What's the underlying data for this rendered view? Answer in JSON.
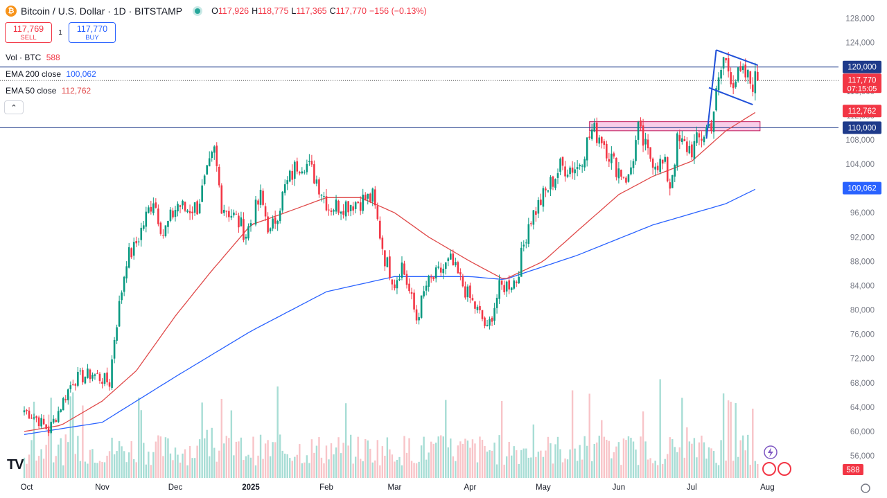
{
  "header": {
    "logo_glyph": "₿",
    "symbol_title": "Bitcoin / U.S. Dollar · 1D · BITSTAMP",
    "open_label": "O",
    "open": "117,926",
    "high_label": "H",
    "high": "118,775",
    "low_label": "L",
    "low": "117,365",
    "close_label": "C",
    "close": "117,770",
    "change": "−156 (−0.13%)"
  },
  "trade": {
    "sell_price": "117,769",
    "sell_label": "SELL",
    "spread": "1",
    "buy_price": "117,770",
    "buy_label": "BUY"
  },
  "indicators": {
    "vol_name": "Vol · BTC",
    "vol_value": "588",
    "ema200_name": "EMA 200 close",
    "ema200_value": "100,062",
    "ema50_name": "EMA 50 close",
    "ema50_value": "112,762",
    "collapse_glyph": "⌃"
  },
  "logo_text": "TV",
  "colors": {
    "up": "#089981",
    "down": "#f23645",
    "ema200": "#2962ff",
    "ema50": "#e04a4a",
    "hline": "#1e3a8a",
    "zone_fill": "#f7c6e4",
    "zone_stroke": "#c2185b",
    "trendline": "#2050d8",
    "vol_up": "#a7ddd5",
    "vol_down": "#f8c4c8"
  },
  "chart_data": {
    "type": "candlestick",
    "title": "Bitcoin / U.S. Dollar · 1D · BITSTAMP",
    "ylim": [
      53000,
      130000
    ],
    "y_ticks": [
      "56,000",
      "60,000",
      "64,000",
      "68,000",
      "72,000",
      "76,000",
      "80,000",
      "84,000",
      "88,000",
      "92,000",
      "96,000",
      "100,000",
      "104,000",
      "108,000",
      "112,000",
      "116,000",
      "120,000",
      "124,000",
      "128,000"
    ],
    "x_ticks": [
      "Oct",
      "Nov",
      "Dec",
      "2025",
      "Feb",
      "Mar",
      "Apr",
      "May",
      "Jun",
      "Jul",
      "Aug"
    ],
    "close_path": [
      [
        "2024-09-30",
        63500
      ],
      [
        "2024-10-05",
        62200
      ],
      [
        "2024-10-10",
        60200
      ],
      [
        "2024-10-13",
        62500
      ],
      [
        "2024-10-20",
        68500
      ],
      [
        "2024-10-28",
        69500
      ],
      [
        "2024-11-04",
        68000
      ],
      [
        "2024-11-06",
        75500
      ],
      [
        "2024-11-11",
        88500
      ],
      [
        "2024-11-14",
        90000
      ],
      [
        "2024-11-22",
        98500
      ],
      [
        "2024-11-26",
        92500
      ],
      [
        "2024-12-02",
        97500
      ],
      [
        "2024-12-05",
        96500
      ],
      [
        "2024-12-10",
        97000
      ],
      [
        "2024-12-17",
        106000
      ],
      [
        "2024-12-20",
        97500
      ],
      [
        "2024-12-26",
        95000
      ],
      [
        "2024-12-30",
        92500
      ],
      [
        "2025-01-05",
        98500
      ],
      [
        "2025-01-09",
        92500
      ],
      [
        "2025-01-15",
        100000
      ],
      [
        "2025-01-20",
        104000
      ],
      [
        "2025-01-23",
        104500
      ],
      [
        "2025-01-28",
        101500
      ],
      [
        "2025-02-02",
        97000
      ],
      [
        "2025-02-10",
        97500
      ],
      [
        "2025-02-20",
        98500
      ],
      [
        "2025-02-25",
        88500
      ],
      [
        "2025-03-01",
        84500
      ],
      [
        "2025-03-04",
        87500
      ],
      [
        "2025-03-10",
        78500
      ],
      [
        "2025-03-14",
        84000
      ],
      [
        "2025-03-24",
        88000
      ],
      [
        "2025-03-31",
        82500
      ],
      [
        "2025-04-06",
        78500
      ],
      [
        "2025-04-08",
        76500
      ],
      [
        "2025-04-13",
        83500
      ],
      [
        "2025-04-20",
        85000
      ],
      [
        "2025-04-25",
        94500
      ],
      [
        "2025-05-08",
        103500
      ],
      [
        "2025-05-15",
        103500
      ],
      [
        "2025-05-21",
        109500
      ],
      [
        "2025-05-25",
        108500
      ],
      [
        "2025-05-30",
        104000
      ],
      [
        "2025-06-05",
        101500
      ],
      [
        "2025-06-09",
        109500
      ],
      [
        "2025-06-13",
        105500
      ],
      [
        "2025-06-20",
        103500
      ],
      [
        "2025-06-22",
        100500
      ],
      [
        "2025-06-25",
        107500
      ],
      [
        "2025-07-01",
        106500
      ],
      [
        "2025-07-05",
        108500
      ],
      [
        "2025-07-09",
        111000
      ],
      [
        "2025-07-14",
        121500
      ],
      [
        "2025-07-18",
        118000
      ],
      [
        "2025-07-23",
        118500
      ],
      [
        "2025-07-25",
        117500
      ],
      [
        "2025-07-28",
        117770
      ]
    ],
    "ema50_path": [
      [
        "2024-09-30",
        60000
      ],
      [
        "2024-10-15",
        61000
      ],
      [
        "2024-11-01",
        65000
      ],
      [
        "2024-11-15",
        70000
      ],
      [
        "2024-12-01",
        79000
      ],
      [
        "2024-12-15",
        86000
      ],
      [
        "2025-01-01",
        94000
      ],
      [
        "2025-01-15",
        96000
      ],
      [
        "2025-02-01",
        98500
      ],
      [
        "2025-02-15",
        98500
      ],
      [
        "2025-03-01",
        96000
      ],
      [
        "2025-03-15",
        92000
      ],
      [
        "2025-04-01",
        88000
      ],
      [
        "2025-04-15",
        85000
      ],
      [
        "2025-05-01",
        88000
      ],
      [
        "2025-05-15",
        93000
      ],
      [
        "2025-06-01",
        99000
      ],
      [
        "2025-06-15",
        102000
      ],
      [
        "2025-07-01",
        104500
      ],
      [
        "2025-07-15",
        109500
      ],
      [
        "2025-07-28",
        112762
      ]
    ],
    "ema200_path": [
      [
        "2024-09-30",
        59500
      ],
      [
        "2024-11-01",
        61500
      ],
      [
        "2024-12-01",
        69000
      ],
      [
        "2025-01-01",
        76500
      ],
      [
        "2025-02-01",
        83000
      ],
      [
        "2025-03-01",
        85500
      ],
      [
        "2025-04-01",
        85500
      ],
      [
        "2025-04-15",
        85000
      ],
      [
        "2025-05-15",
        89000
      ],
      [
        "2025-06-15",
        94000
      ],
      [
        "2025-07-15",
        97500
      ],
      [
        "2025-07-28",
        100062
      ]
    ],
    "horizontal_levels": [
      120000,
      110000
    ],
    "resistance_zone": {
      "from_date": "2025-05-20",
      "to_date": "2025-07-29",
      "low": 109500,
      "high": 111000
    },
    "flag": {
      "pole": [
        [
          "2025-07-07",
          108200
        ],
        [
          "2025-07-11",
          122800
        ]
      ],
      "upper": [
        [
          "2025-07-11",
          122800
        ],
        [
          "2025-07-28",
          120300
        ]
      ],
      "lower": [
        [
          "2025-07-08",
          116600
        ],
        [
          "2025-07-26",
          113800
        ]
      ]
    },
    "price_axis_labels": {
      "level_120000": "120,000",
      "last_price": "117,770",
      "countdown": "07:15:05",
      "ema50": "112,762",
      "level_110000": "110,000",
      "ema200": "100,062",
      "volume": "588"
    }
  }
}
